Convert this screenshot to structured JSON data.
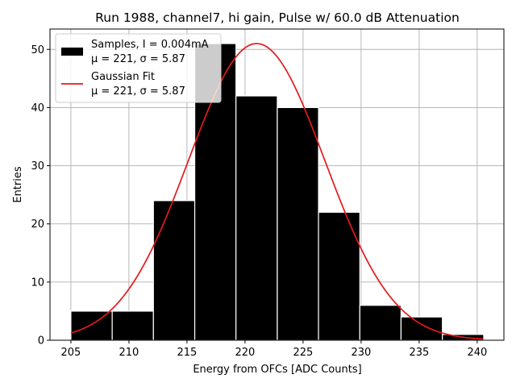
{
  "chart_data": {
    "type": "bar",
    "title": "Run 1988, channel7, hi gain, Pulse w/ 60.0 dB Attenuation",
    "xlabel": "Energy from OFCs [ADC Counts]",
    "ylabel": "Entries",
    "xlim": [
      203.2,
      242.3
    ],
    "ylim": [
      0,
      53.5
    ],
    "x_ticks": [
      205,
      210,
      215,
      220,
      225,
      230,
      235,
      240
    ],
    "y_ticks": [
      0,
      10,
      20,
      30,
      40,
      50
    ],
    "grid": true,
    "legend_position": "top-left",
    "colors": {
      "bars": "#000000",
      "bar_edge": "#ffffff",
      "fit": "#e41a1c"
    },
    "bins": [
      {
        "start": 205.0,
        "end": 208.56,
        "count": 5
      },
      {
        "start": 208.56,
        "end": 212.11,
        "count": 5
      },
      {
        "start": 212.11,
        "end": 215.67,
        "count": 24
      },
      {
        "start": 215.67,
        "end": 219.22,
        "count": 51
      },
      {
        "start": 219.22,
        "end": 222.78,
        "count": 42
      },
      {
        "start": 222.78,
        "end": 226.33,
        "count": 40
      },
      {
        "start": 226.33,
        "end": 229.89,
        "count": 22
      },
      {
        "start": 229.89,
        "end": 233.44,
        "count": 6
      },
      {
        "start": 233.44,
        "end": 237.0,
        "count": 4
      },
      {
        "start": 237.0,
        "end": 240.56,
        "count": 1
      }
    ],
    "fit": {
      "mu": 221.0,
      "sigma": 5.87,
      "amplitude": 51,
      "x_range": [
        205,
        240.5
      ]
    },
    "series": [
      {
        "name": "Samples, I = 0.004mA",
        "stats": "μ = 221, σ = 5.87"
      },
      {
        "name": "Gaussian Fit",
        "stats": "μ = 221, σ = 5.87"
      }
    ]
  }
}
